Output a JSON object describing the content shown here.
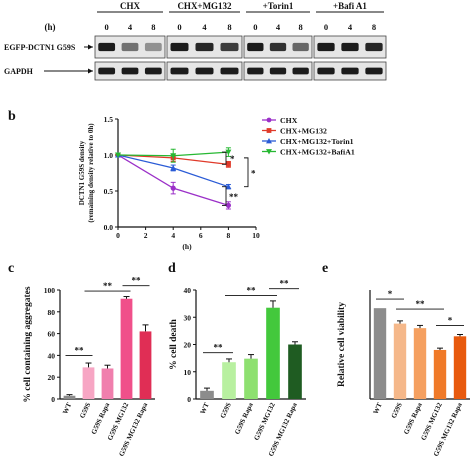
{
  "western_blot": {
    "time_unit": "(h)",
    "groups": [
      {
        "name": "CHX",
        "times": [
          "0",
          "4",
          "8"
        ]
      },
      {
        "name": "CHX+MG132",
        "times": [
          "0",
          "4",
          "8"
        ]
      },
      {
        "name": "+Torin1",
        "times": [
          "0",
          "4",
          "8"
        ]
      },
      {
        "name": "+Bafi A1",
        "times": [
          "0",
          "4",
          "8"
        ]
      }
    ],
    "rows": [
      {
        "label": "EGFP-DCTN1 G59S",
        "band_intensity": [
          [
            0.95,
            0.55,
            0.4
          ],
          [
            0.95,
            0.9,
            0.8
          ],
          [
            0.95,
            0.85,
            0.6
          ],
          [
            0.95,
            0.95,
            0.9
          ]
        ]
      },
      {
        "label": "GAPDH",
        "band_intensity": [
          [
            0.95,
            0.95,
            0.95
          ],
          [
            0.95,
            0.95,
            0.95
          ],
          [
            0.95,
            0.95,
            0.95
          ],
          [
            0.95,
            0.95,
            0.95
          ]
        ]
      }
    ]
  },
  "chart_data": [
    {
      "panel": "b",
      "type": "line",
      "xlabel": "(h)",
      "ylabel_lines": [
        "DCTN1 G59S density",
        "(remaining density relative to 0h)"
      ],
      "xlim": [
        0,
        10
      ],
      "ylim": [
        0,
        1.5
      ],
      "xticks": [
        0,
        2,
        4,
        6,
        8,
        10
      ],
      "yticks": [
        0.0,
        0.5,
        1.0,
        1.5
      ],
      "x": [
        0,
        4,
        8
      ],
      "legend_position": "right",
      "series": [
        {
          "name": "CHX",
          "color": "#9b30c8",
          "values": [
            1.0,
            0.54,
            0.3
          ],
          "errors": [
            0,
            0.08,
            0.05
          ]
        },
        {
          "name": "CHX+MG132",
          "color": "#e03a2a",
          "values": [
            1.0,
            0.96,
            0.87
          ],
          "errors": [
            0,
            0.05,
            0.04
          ]
        },
        {
          "name": "CHX+MG132+Torin1",
          "color": "#2a5bd6",
          "values": [
            1.0,
            0.82,
            0.56
          ],
          "errors": [
            0,
            0.04,
            0.03
          ]
        },
        {
          "name": "CHX+MG132+BafiA1",
          "color": "#27b833",
          "values": [
            1.0,
            0.99,
            1.04
          ],
          "errors": [
            0,
            0.09,
            0.06
          ]
        }
      ],
      "significance": [
        "*",
        "**",
        "*"
      ]
    },
    {
      "panel": "c",
      "type": "bar",
      "ylabel": "% cell containing aggregates",
      "ylim": [
        0,
        100
      ],
      "yticks": [
        0,
        20,
        40,
        60,
        80,
        100
      ],
      "categories": [
        "WT",
        "G59S",
        "G59S Rapa",
        "G59S MG132",
        "G59S MG132 Rapa"
      ],
      "values": [
        3,
        29,
        28,
        92,
        62
      ],
      "errors": [
        1,
        4,
        3,
        2,
        6
      ],
      "colors": [
        "#8c8c8c",
        "#f7a6c4",
        "#f07fad",
        "#f0508a",
        "#e02e55"
      ],
      "significance": [
        "**",
        "**",
        "**"
      ]
    },
    {
      "panel": "d",
      "type": "bar",
      "ylabel": "% cell death",
      "ylim": [
        0,
        40
      ],
      "yticks": [
        0,
        10,
        20,
        30,
        40
      ],
      "categories": [
        "WT",
        "G59S",
        "G59S Rapa",
        "G59S MG132",
        "G59S MG132 Rapa"
      ],
      "values": [
        3,
        13.5,
        14.8,
        33.5,
        20
      ],
      "errors": [
        1,
        1.2,
        1.5,
        2.5,
        1
      ],
      "colors": [
        "#8c8c8c",
        "#b8f0a0",
        "#8ee070",
        "#43c83c",
        "#1f5c22"
      ],
      "significance": [
        "**",
        "**",
        "**"
      ]
    },
    {
      "panel": "e",
      "type": "bar",
      "ylabel": "Relative cell viability",
      "ylim": [
        0,
        1.2
      ],
      "categories": [
        "WT",
        "G59S",
        "G59S Rapa",
        "G59S MG132",
        "G59S MG132 Rapa"
      ],
      "values": [
        1.0,
        0.83,
        0.78,
        0.54,
        0.69
      ],
      "errors": [
        0,
        0.03,
        0.03,
        0.02,
        0.02
      ],
      "colors": [
        "#8c8c8c",
        "#f5b88a",
        "#f5a060",
        "#f07a28",
        "#e85a0e"
      ],
      "significance": [
        "*",
        "**",
        "*"
      ]
    }
  ],
  "panel_labels": {
    "b": "b",
    "c": "c",
    "d": "d",
    "e": "e"
  }
}
